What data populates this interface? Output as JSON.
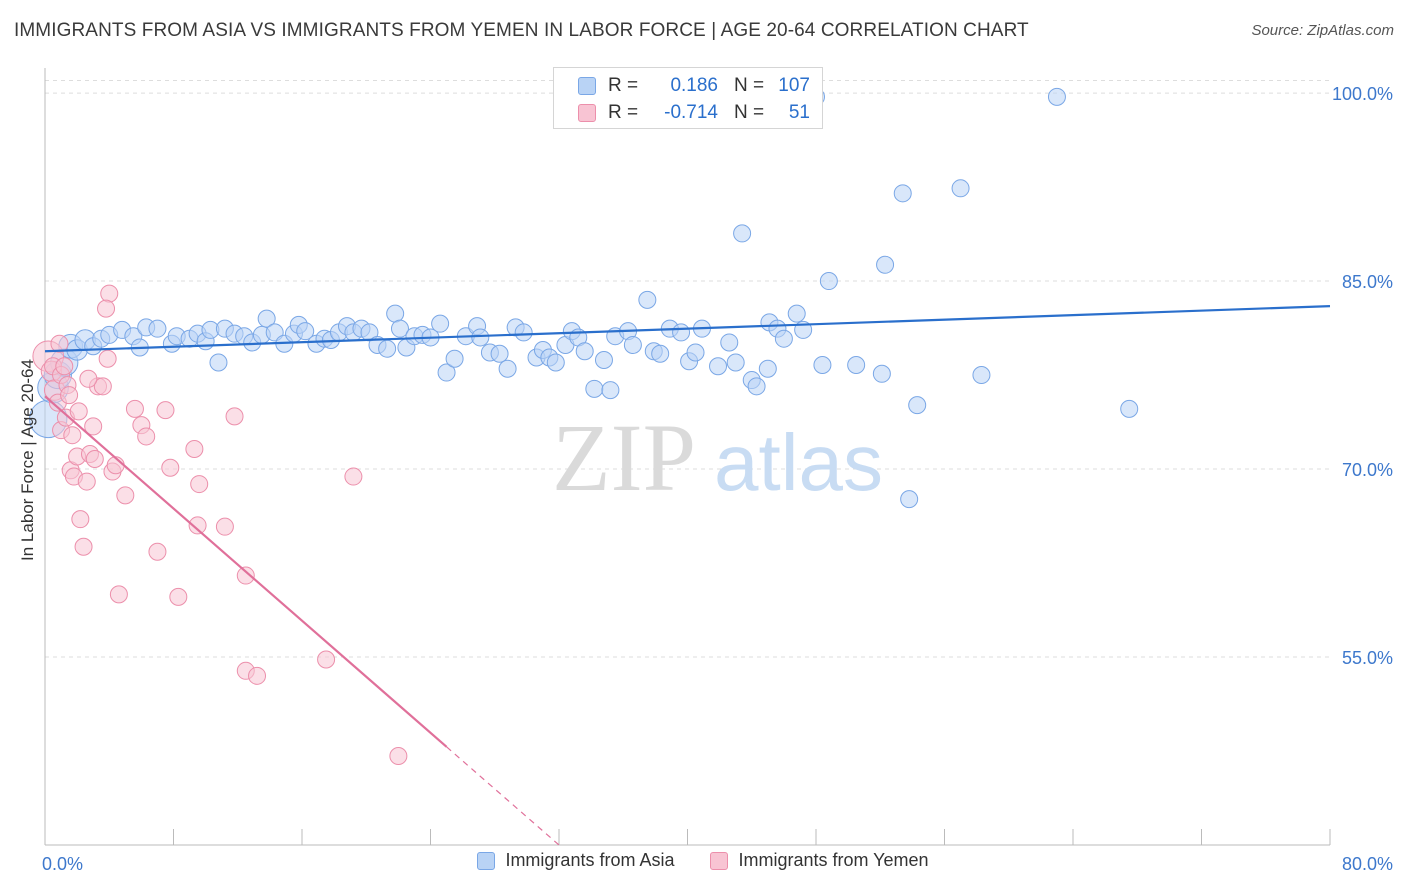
{
  "title": "IMMIGRANTS FROM ASIA VS IMMIGRANTS FROM YEMEN IN LABOR FORCE | AGE 20-64 CORRELATION CHART",
  "source": "Source: ZipAtlas.com",
  "watermark": {
    "zip": "ZIP",
    "atlas": "atlas"
  },
  "legend": {
    "r_label": "R =",
    "n_label": "N =",
    "rows": [
      {
        "r": "0.186",
        "n": "107",
        "fill": "#b9d3f5",
        "stroke": "#7aa7e6"
      },
      {
        "r": "-0.714",
        "n": "51",
        "fill": "#f8c4d3",
        "stroke": "#ec8fab"
      }
    ]
  },
  "chart_data": {
    "type": "scatter",
    "xlabel": "",
    "ylabel": "In Labor Force | Age 20-64",
    "xlim": [
      0,
      80
    ],
    "ylim": [
      40,
      102
    ],
    "x_ticks": [
      "0.0%",
      "80.0%"
    ],
    "y_ticks": [
      {
        "value": 100,
        "label": "100.0%"
      },
      {
        "value": 85,
        "label": "85.0%"
      },
      {
        "value": 70,
        "label": "70.0%"
      },
      {
        "value": 55,
        "label": "55.0%"
      }
    ],
    "grid": true,
    "legend_position": "bottom",
    "series": [
      {
        "name": "Immigrants from Asia",
        "color": "#b9d3f5",
        "stroke": "#7aa7e6",
        "line_color": "#2a6fcc",
        "trend": {
          "x": [
            0,
            80
          ],
          "y": [
            79.4,
            83.0
          ],
          "dashed_from": null
        },
        "points": [
          [
            0.2,
            74.0,
            2.2
          ],
          [
            0.5,
            76.5,
            1.8
          ],
          [
            0.8,
            77.5,
            1.6
          ],
          [
            1.2,
            78.5,
            1.6
          ],
          [
            1.6,
            79.8,
            1.4
          ],
          [
            2.0,
            79.5,
            1.2
          ],
          [
            2.5,
            80.3,
            1.2
          ],
          [
            3.0,
            79.8,
            1.0
          ],
          [
            3.5,
            80.4,
            1.0
          ],
          [
            4.0,
            80.7,
            1.0
          ],
          [
            4.8,
            81.1,
            1.0
          ],
          [
            5.5,
            80.6,
            1.0
          ],
          [
            5.9,
            79.7,
            1.0
          ],
          [
            6.3,
            81.3,
            1.0
          ],
          [
            7.0,
            81.2,
            1.0
          ],
          [
            7.9,
            80.0,
            1.0
          ],
          [
            8.2,
            80.6,
            1.0
          ],
          [
            9.0,
            80.4,
            1.0
          ],
          [
            9.5,
            80.8,
            1.0
          ],
          [
            10.0,
            80.2,
            1.0
          ],
          [
            10.3,
            81.1,
            1.0
          ],
          [
            10.8,
            78.5,
            1.0
          ],
          [
            11.2,
            81.2,
            1.0
          ],
          [
            11.8,
            80.8,
            1.0
          ],
          [
            12.4,
            80.6,
            1.0
          ],
          [
            12.9,
            80.1,
            1.0
          ],
          [
            13.5,
            80.7,
            1.0
          ],
          [
            13.8,
            82.0,
            1.0
          ],
          [
            14.3,
            80.9,
            1.0
          ],
          [
            14.9,
            80.0,
            1.0
          ],
          [
            15.5,
            80.8,
            1.0
          ],
          [
            15.8,
            81.5,
            1.0
          ],
          [
            16.2,
            81.0,
            1.0
          ],
          [
            16.9,
            80.0,
            1.0
          ],
          [
            17.4,
            80.4,
            1.0
          ],
          [
            17.8,
            80.3,
            1.0
          ],
          [
            18.3,
            80.9,
            1.0
          ],
          [
            18.8,
            81.4,
            1.0
          ],
          [
            19.2,
            80.9,
            1.0
          ],
          [
            19.7,
            81.2,
            1.0
          ],
          [
            20.2,
            80.9,
            1.0
          ],
          [
            20.7,
            79.9,
            1.0
          ],
          [
            21.3,
            79.6,
            1.0
          ],
          [
            21.8,
            82.4,
            1.0
          ],
          [
            22.1,
            81.2,
            1.0
          ],
          [
            22.5,
            79.7,
            1.0
          ],
          [
            23.0,
            80.6,
            1.0
          ],
          [
            23.5,
            80.7,
            1.0
          ],
          [
            24.0,
            80.5,
            1.0
          ],
          [
            24.6,
            81.6,
            1.0
          ],
          [
            25.0,
            77.7,
            1.0
          ],
          [
            25.5,
            78.8,
            1.0
          ],
          [
            26.2,
            80.6,
            1.0
          ],
          [
            26.9,
            81.4,
            1.0
          ],
          [
            27.1,
            80.5,
            1.0
          ],
          [
            27.7,
            79.3,
            1.0
          ],
          [
            28.3,
            79.2,
            1.0
          ],
          [
            28.8,
            78.0,
            1.0
          ],
          [
            29.3,
            81.3,
            1.0
          ],
          [
            29.8,
            80.9,
            1.0
          ],
          [
            30.6,
            78.9,
            1.0
          ],
          [
            31.0,
            79.5,
            1.0
          ],
          [
            31.4,
            78.9,
            1.0
          ],
          [
            31.8,
            78.5,
            1.0
          ],
          [
            32.4,
            79.9,
            1.0
          ],
          [
            32.8,
            81.0,
            1.0
          ],
          [
            33.2,
            80.5,
            1.0
          ],
          [
            33.6,
            79.4,
            1.0
          ],
          [
            34.2,
            76.4,
            1.0
          ],
          [
            34.8,
            78.7,
            1.0
          ],
          [
            35.2,
            76.3,
            1.0
          ],
          [
            35.5,
            80.6,
            1.0
          ],
          [
            36.3,
            81.0,
            1.0
          ],
          [
            36.6,
            79.9,
            1.0
          ],
          [
            37.5,
            83.5,
            1.0
          ],
          [
            37.9,
            79.4,
            1.0
          ],
          [
            38.3,
            79.2,
            1.0
          ],
          [
            38.9,
            81.2,
            1.0
          ],
          [
            39.6,
            80.9,
            1.0
          ],
          [
            40.1,
            78.6,
            1.0
          ],
          [
            40.5,
            79.3,
            1.0
          ],
          [
            40.9,
            81.2,
            1.0
          ],
          [
            41.9,
            78.2,
            1.0
          ],
          [
            42.6,
            80.1,
            1.0
          ],
          [
            43.0,
            78.5,
            1.0
          ],
          [
            44.0,
            77.1,
            1.0
          ],
          [
            44.3,
            76.6,
            1.0
          ],
          [
            45.0,
            78.0,
            1.0
          ],
          [
            45.1,
            81.7,
            1.0
          ],
          [
            45.6,
            81.2,
            1.0
          ],
          [
            46.0,
            80.4,
            1.0
          ],
          [
            46.8,
            82.4,
            1.0
          ],
          [
            47.2,
            81.1,
            1.0
          ],
          [
            43.4,
            88.8,
            1.0
          ],
          [
            48.4,
            78.3,
            1.0
          ],
          [
            48.8,
            85.0,
            1.0
          ],
          [
            50.5,
            78.3,
            1.0
          ],
          [
            52.1,
            77.6,
            1.0
          ],
          [
            52.3,
            86.3,
            1.0
          ],
          [
            53.4,
            92.0,
            1.0
          ],
          [
            54.3,
            75.1,
            1.0
          ],
          [
            53.8,
            67.6,
            1.0
          ],
          [
            57.0,
            92.4,
            1.0
          ],
          [
            58.3,
            77.5,
            1.0
          ],
          [
            63.0,
            99.7,
            1.0
          ],
          [
            67.5,
            74.8,
            1.0
          ],
          [
            48.0,
            99.7,
            1.0
          ]
        ]
      },
      {
        "name": "Immigrants from Yemen",
        "color": "#f8c4d3",
        "stroke": "#ec8fab",
        "line_color": "#e0709a",
        "trend": {
          "x": [
            0,
            32
          ],
          "y": [
            75.8,
            40.0
          ],
          "dashed_from": 25
        },
        "points": [
          [
            0.2,
            79.0,
            1.8
          ],
          [
            0.4,
            77.8,
            1.2
          ],
          [
            0.6,
            76.3,
            1.2
          ],
          [
            0.8,
            75.3,
            1.0
          ],
          [
            0.5,
            78.2,
            1.0
          ],
          [
            1.0,
            77.5,
            1.0
          ],
          [
            1.2,
            78.2,
            1.0
          ],
          [
            1.4,
            76.7,
            1.0
          ],
          [
            1.5,
            75.9,
            1.0
          ],
          [
            1.0,
            73.1,
            1.0
          ],
          [
            1.3,
            74.1,
            1.0
          ],
          [
            1.6,
            69.9,
            1.0
          ],
          [
            1.8,
            69.4,
            1.0
          ],
          [
            2.0,
            71.0,
            1.0
          ],
          [
            2.2,
            66.0,
            1.0
          ],
          [
            2.4,
            63.8,
            1.0
          ],
          [
            2.6,
            69.0,
            1.0
          ],
          [
            2.8,
            71.2,
            1.0
          ],
          [
            3.0,
            73.4,
            1.0
          ],
          [
            3.3,
            76.6,
            1.0
          ],
          [
            3.1,
            70.8,
            1.0
          ],
          [
            3.6,
            76.6,
            1.0
          ],
          [
            3.9,
            78.8,
            1.0
          ],
          [
            4.2,
            69.8,
            1.0
          ],
          [
            4.4,
            70.3,
            1.0
          ],
          [
            4.6,
            60.0,
            1.0
          ],
          [
            4.0,
            84.0,
            1.0
          ],
          [
            3.8,
            82.8,
            1.0
          ],
          [
            5.0,
            67.9,
            1.0
          ],
          [
            5.6,
            74.8,
            1.0
          ],
          [
            6.0,
            73.5,
            1.0
          ],
          [
            6.3,
            72.6,
            1.0
          ],
          [
            7.0,
            63.4,
            1.0
          ],
          [
            7.5,
            74.7,
            1.0
          ],
          [
            7.8,
            70.1,
            1.0
          ],
          [
            8.3,
            59.8,
            1.0
          ],
          [
            9.3,
            71.6,
            1.0
          ],
          [
            9.5,
            65.5,
            1.0
          ],
          [
            9.6,
            68.8,
            1.0
          ],
          [
            11.2,
            65.4,
            1.0
          ],
          [
            11.8,
            74.2,
            1.0
          ],
          [
            12.5,
            61.5,
            1.0
          ],
          [
            12.5,
            53.9,
            1.0
          ],
          [
            13.2,
            53.5,
            1.0
          ],
          [
            17.5,
            54.8,
            1.0
          ],
          [
            19.2,
            69.4,
            1.0
          ],
          [
            22.0,
            47.1,
            1.0
          ],
          [
            2.7,
            77.2,
            1.0
          ],
          [
            0.9,
            80.0,
            1.0
          ],
          [
            1.7,
            72.7,
            1.0
          ],
          [
            2.1,
            74.6,
            1.0
          ]
        ]
      }
    ]
  }
}
